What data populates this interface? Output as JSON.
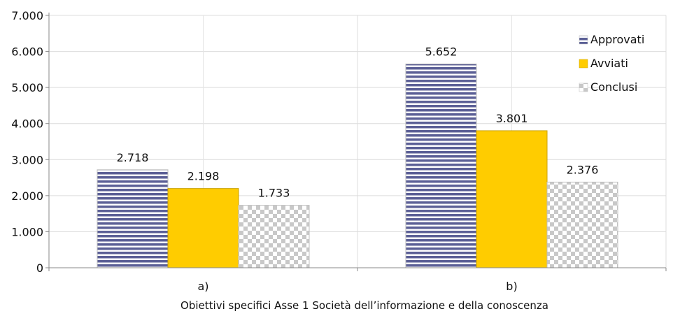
{
  "chart_data": {
    "type": "bar",
    "title": "",
    "xlabel": "Obiettivi specifici Asse 1 Società dell’informazione e della conoscenza",
    "ylabel": "",
    "categories": [
      "a)",
      "b)"
    ],
    "series": [
      {
        "name": "Approvati",
        "values": [
          2718,
          5652
        ],
        "labels": [
          "2.718",
          "5.652"
        ],
        "color": "#5b5f96",
        "pattern": "horizontal-stripes"
      },
      {
        "name": "Avviati",
        "values": [
          2198,
          3801
        ],
        "labels": [
          "2.198",
          "3.801"
        ],
        "color": "#ffcc00",
        "pattern": "solid"
      },
      {
        "name": "Conclusi",
        "values": [
          1733,
          2376
        ],
        "labels": [
          "1.733",
          "2.376"
        ],
        "color": "#c8c8c8",
        "pattern": "checkerboard"
      }
    ],
    "ylim": [
      0,
      7000
    ],
    "yticks": [
      0,
      1000,
      2000,
      3000,
      4000,
      5000,
      6000,
      7000
    ],
    "ytick_labels": [
      "0",
      "1.000",
      "2.000",
      "3.000",
      "4.000",
      "5.000",
      "6.000",
      "7.000"
    ],
    "grid": true,
    "legend_position": "top-right"
  }
}
